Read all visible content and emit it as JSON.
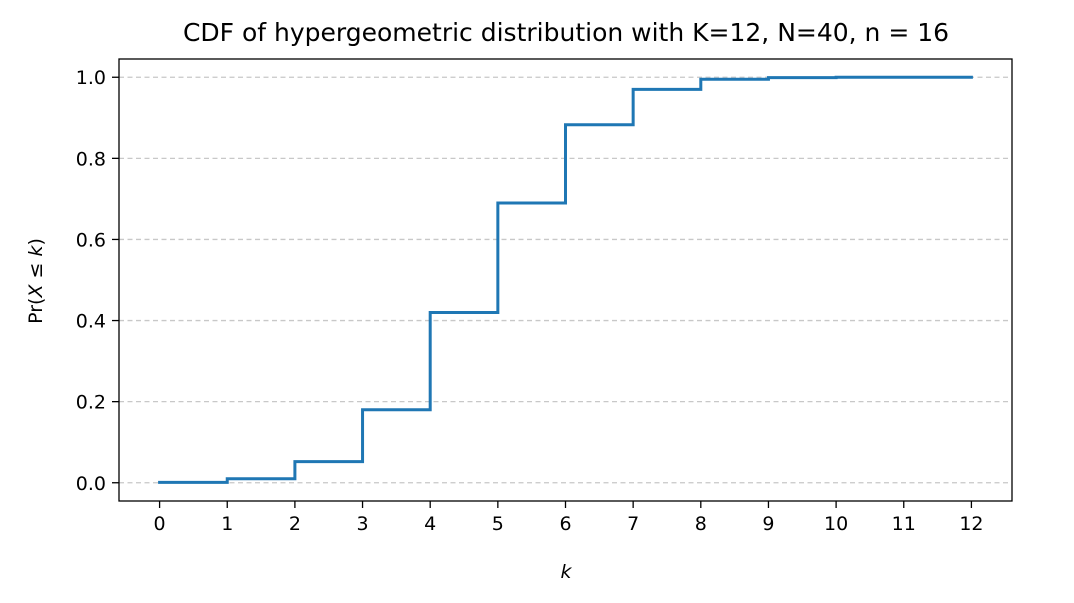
{
  "chart_data": {
    "type": "line",
    "drawstyle": "steps-post",
    "title": "CDF of hypergeometric distribution with K=12, N=40, n = 16",
    "xlabel": "k",
    "ylabel_parts": {
      "prefix": "Pr(",
      "var": "X",
      "op": " ≤ ",
      "var2": "k",
      "suffix": ")"
    },
    "x": [
      0,
      1,
      2,
      3,
      4,
      5,
      6,
      7,
      8,
      9,
      10,
      11,
      12
    ],
    "y": [
      0.001,
      0.01,
      0.052,
      0.18,
      0.42,
      0.69,
      0.883,
      0.97,
      0.995,
      0.999,
      1.0,
      1.0,
      1.0
    ],
    "xlim": [
      -0.6,
      12.6
    ],
    "ylim": [
      -0.045,
      1.045
    ],
    "xticks": [
      0,
      1,
      2,
      3,
      4,
      5,
      6,
      7,
      8,
      9,
      10,
      11,
      12
    ],
    "xtick_labels": [
      "0",
      "1",
      "2",
      "3",
      "4",
      "5",
      "6",
      "7",
      "8",
      "9",
      "10",
      "11",
      "12"
    ],
    "yticks": [
      0.0,
      0.2,
      0.4,
      0.6,
      0.8,
      1.0
    ],
    "ytick_labels": [
      "0.0",
      "0.2",
      "0.4",
      "0.6",
      "0.8",
      "1.0"
    ],
    "grid": "y-dashed",
    "colors": {
      "line": "#1f77b4",
      "grid": "#c8c8c8",
      "axes": "#000000"
    }
  }
}
